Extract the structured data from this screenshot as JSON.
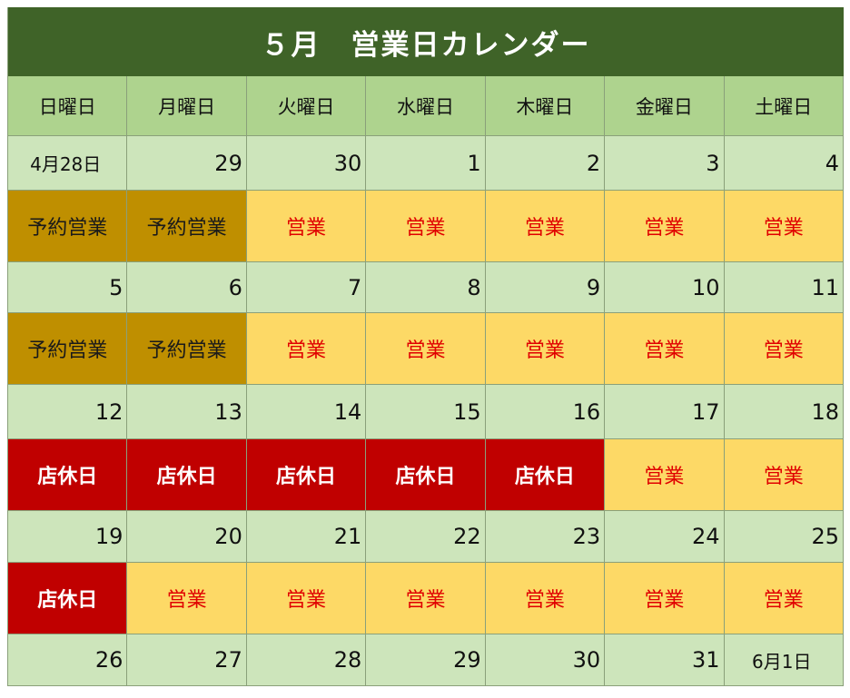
{
  "title": "５月　営業日カレンダー",
  "weekdays": [
    "日曜日",
    "月曜日",
    "火曜日",
    "水曜日",
    "木曜日",
    "金曜日",
    "土曜日"
  ],
  "status_labels": {
    "open": "営業",
    "reserve": "予約営業",
    "closed": "店休日"
  },
  "colors": {
    "title_bg": "#3f6328",
    "header_bg": "#aed38e",
    "date_bg": "#cde5bb",
    "open_bg": "#fdd966",
    "open_text": "#e00000",
    "reserve_bg": "#bf8f00",
    "closed_bg": "#c00000"
  },
  "weeks": [
    {
      "dates": [
        "4月28日",
        "29",
        "30",
        "1",
        "2",
        "3",
        "4"
      ],
      "statuses": [
        "予約営業",
        "予約営業",
        "営業",
        "営業",
        "営業",
        "営業",
        "営業"
      ]
    },
    {
      "dates": [
        "5",
        "6",
        "7",
        "8",
        "9",
        "10",
        "11"
      ],
      "statuses": [
        "予約営業",
        "予約営業",
        "営業",
        "営業",
        "営業",
        "営業",
        "営業"
      ]
    },
    {
      "dates": [
        "12",
        "13",
        "14",
        "15",
        "16",
        "17",
        "18"
      ],
      "statuses": [
        "店休日",
        "店休日",
        "店休日",
        "店休日",
        "店休日",
        "営業",
        "営業"
      ]
    },
    {
      "dates": [
        "19",
        "20",
        "21",
        "22",
        "23",
        "24",
        "25"
      ],
      "statuses": [
        "店休日",
        "営業",
        "営業",
        "営業",
        "営業",
        "営業",
        "営業"
      ]
    }
  ],
  "last_row_dates": [
    "26",
    "27",
    "28",
    "29",
    "30",
    "31",
    "6月1日"
  ]
}
